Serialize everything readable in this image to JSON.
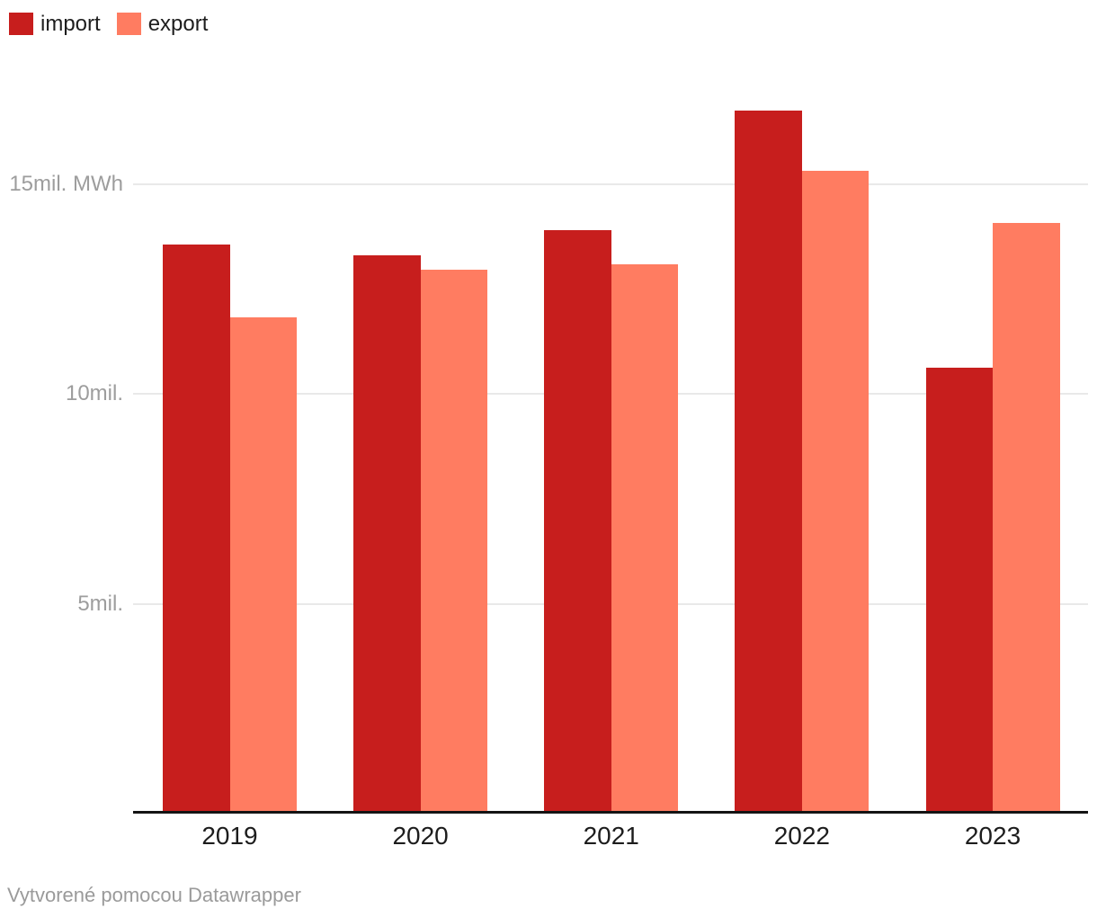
{
  "legend": {
    "items": [
      {
        "label": "import",
        "color": "#c71e1d"
      },
      {
        "label": "export",
        "color": "#ff7c61"
      }
    ]
  },
  "chart_data": {
    "type": "bar",
    "categories": [
      "2019",
      "2020",
      "2021",
      "2022",
      "2023"
    ],
    "series": [
      {
        "name": "import",
        "color": "#c71e1d",
        "values": [
          13.56,
          13.3,
          13.9,
          16.77,
          10.62
        ]
      },
      {
        "name": "export",
        "color": "#ff7c61",
        "values": [
          11.82,
          12.96,
          13.1,
          15.33,
          14.07
        ]
      }
    ],
    "unit": "mil. MWh",
    "y_ticks": [
      {
        "value": 5,
        "label": "5mil."
      },
      {
        "value": 10,
        "label": "10mil."
      },
      {
        "value": 15,
        "label": "15mil. MWh"
      }
    ],
    "ylim": [
      0,
      17.5
    ],
    "grid": true,
    "legend_position": "top-left",
    "title": "",
    "xlabel": "",
    "ylabel": "mil. MWh"
  },
  "colors": {
    "grid": "#e9e9e9",
    "baseline": "#141414",
    "x_label": "#1d1d1d",
    "y_label": "#9d9d9d",
    "footer_text": "#9a9a9a"
  },
  "footer": {
    "attribution": "Vytvorené pomocou Datawrapper"
  }
}
